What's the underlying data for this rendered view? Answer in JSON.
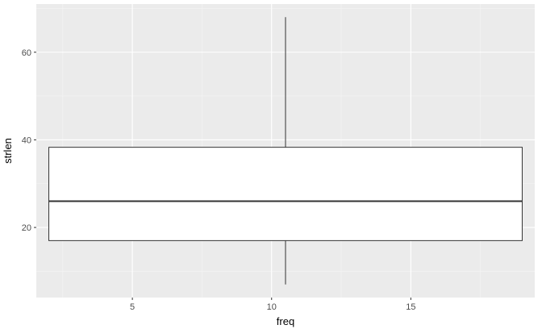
{
  "chart_data": {
    "type": "boxplot",
    "xlabel": "freq",
    "ylabel": "strlen",
    "xlim": [
      1.55,
      19.45
    ],
    "ylim": [
      4.0,
      71.0
    ],
    "x_ticks": [
      5,
      10,
      15
    ],
    "y_ticks": [
      20,
      40,
      60
    ],
    "x_minor_ticks": [
      2.5,
      7.5,
      12.5,
      17.5
    ],
    "y_minor_ticks": [
      10,
      30,
      50,
      70
    ],
    "grid": true,
    "box": {
      "x_center": 10.5,
      "x_min": 2.0,
      "x_max": 19.0,
      "whisker_low": 7,
      "q1": 17,
      "median": 26,
      "q3": 38.3,
      "whisker_high": 68
    },
    "colors": {
      "panel_bg": "#ebebeb",
      "grid_major": "#ffffff",
      "grid_minor": "#f5f5f5",
      "box_fill": "#ffffff",
      "box_stroke": "#333333"
    }
  }
}
